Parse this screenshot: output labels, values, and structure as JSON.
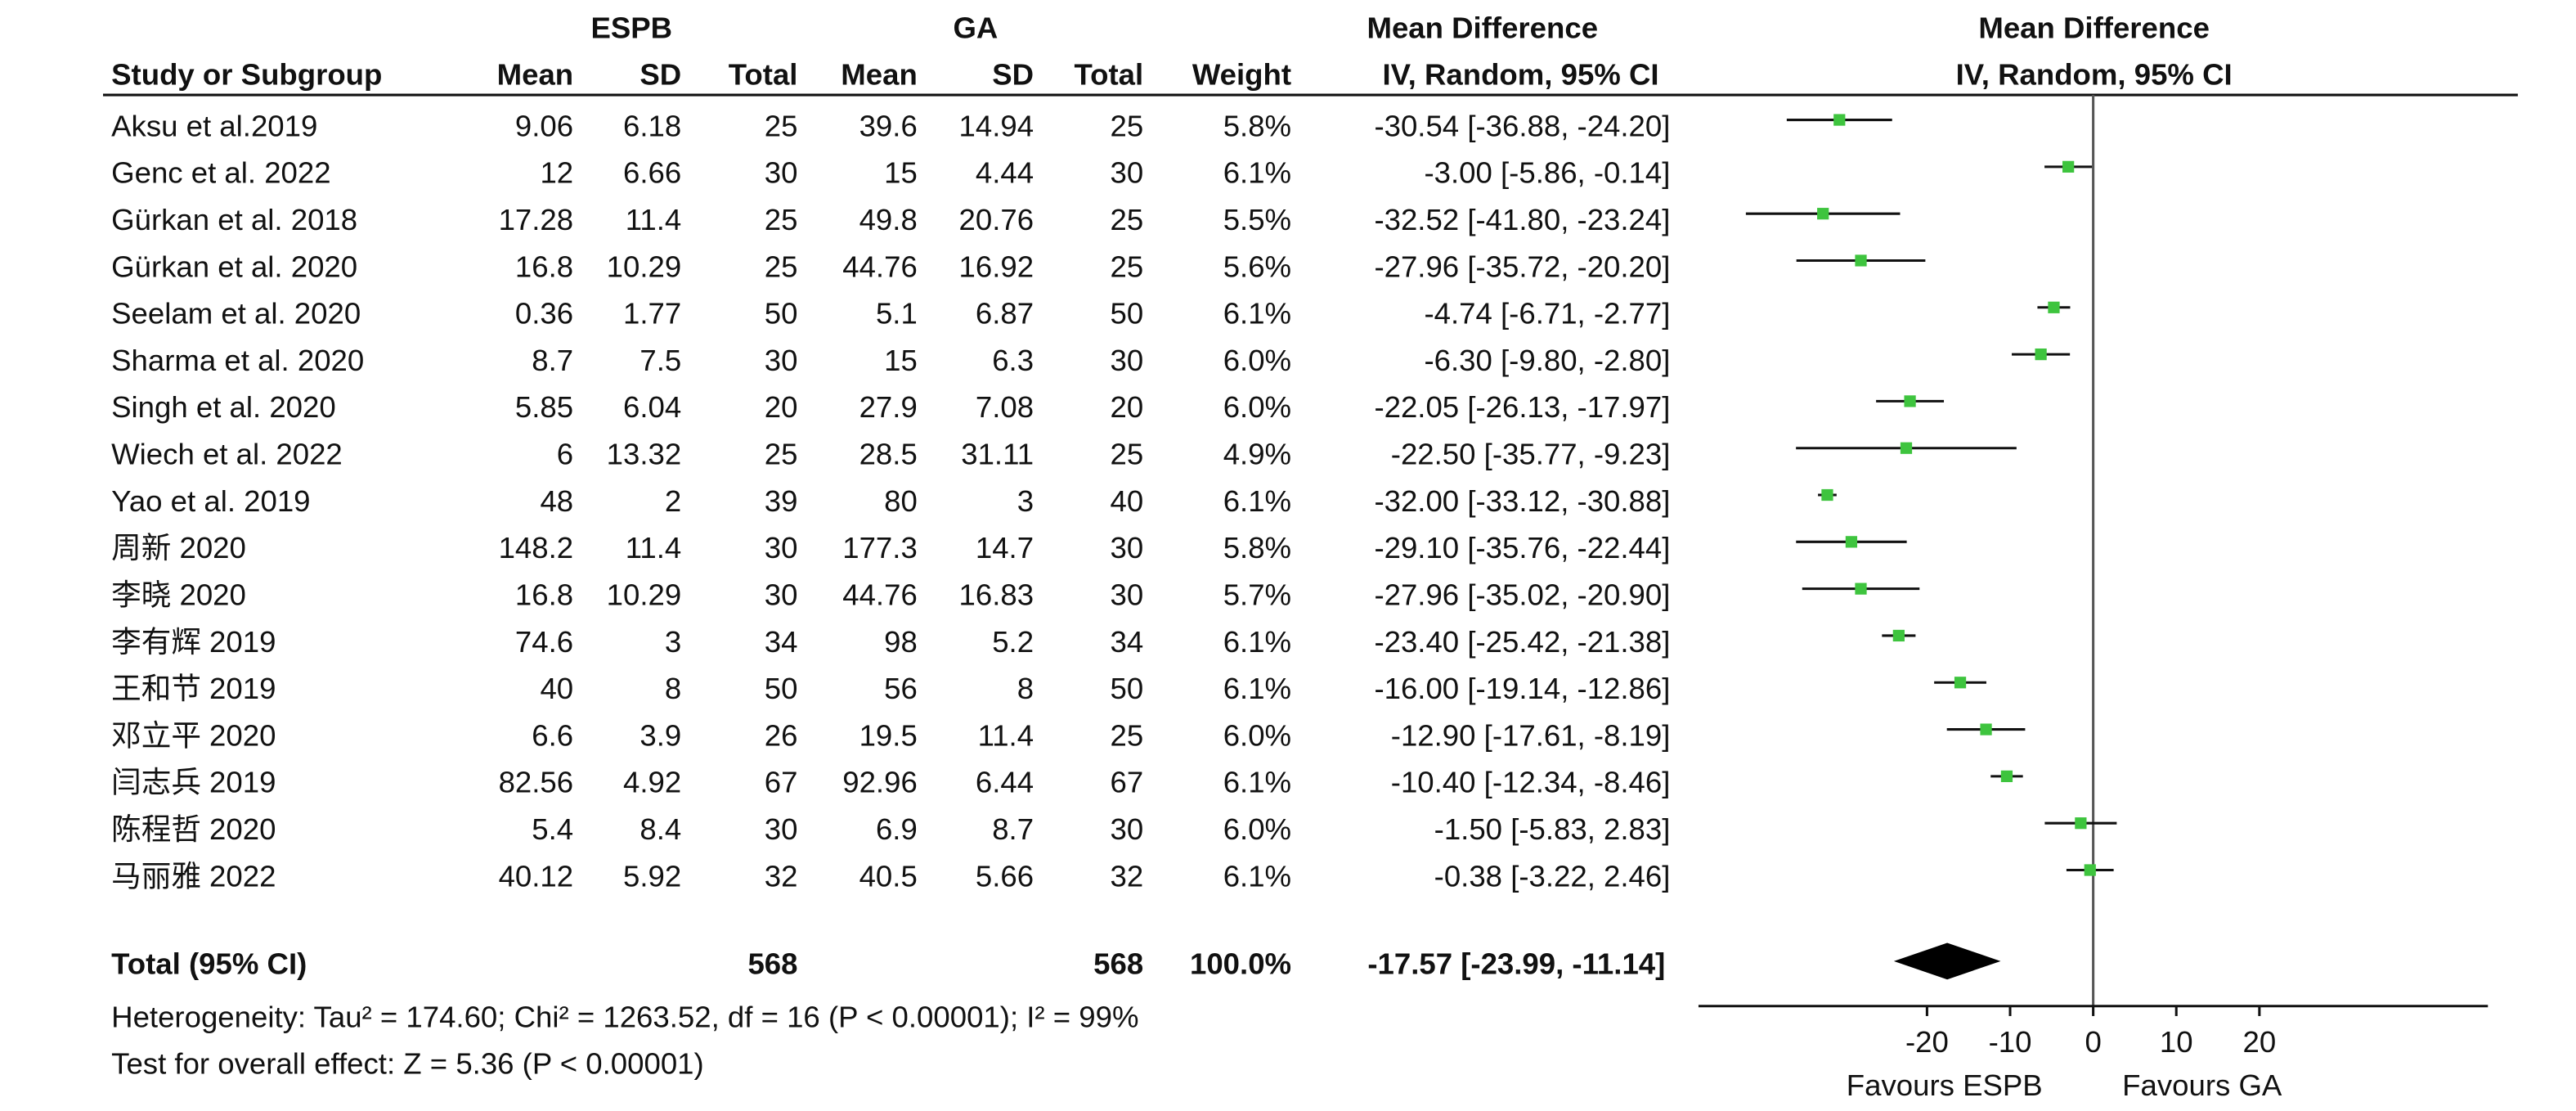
{
  "chart_data": {
    "type": "forest",
    "group_labels": {
      "espb": "ESPB",
      "ga": "GA",
      "md_table": "Mean Difference",
      "md_plot": "Mean Difference"
    },
    "headers": {
      "study": "Study or Subgroup",
      "espb_mean": "Mean",
      "espb_sd": "SD",
      "espb_total": "Total",
      "ga_mean": "Mean",
      "ga_sd": "SD",
      "ga_total": "Total",
      "weight": "Weight",
      "ci": "IV, Random, 95% CI",
      "plot": "IV, Random, 95% CI"
    },
    "studies": [
      "Aksu et al.2019",
      "Genc et al. 2022",
      "Gürkan et al. 2018",
      "Gürkan et al. 2020",
      "Seelam et al. 2020",
      "Sharma et al. 2020",
      "Singh et al. 2020",
      "Wiech et al. 2022",
      "Yao et al. 2019",
      "周新 2020",
      "李晓 2020",
      "李有辉 2019",
      "王和节 2019",
      "邓立平 2020",
      "闫志兵 2019",
      "陈程哲 2020",
      "马丽雅 2022"
    ],
    "espb_mean": [
      9.06,
      12,
      17.28,
      16.8,
      0.36,
      8.7,
      5.85,
      6,
      48,
      148.2,
      16.8,
      74.6,
      40,
      6.6,
      82.56,
      5.4,
      40.12
    ],
    "espb_sd": [
      6.18,
      6.66,
      11.4,
      10.29,
      1.77,
      7.5,
      6.04,
      13.32,
      2,
      11.4,
      10.29,
      3,
      8,
      3.9,
      4.92,
      8.4,
      5.92
    ],
    "espb_total": [
      25,
      30,
      25,
      25,
      50,
      30,
      20,
      25,
      39,
      30,
      30,
      34,
      50,
      26,
      67,
      30,
      32
    ],
    "ga_mean": [
      39.6,
      15,
      49.8,
      44.76,
      5.1,
      15,
      27.9,
      28.5,
      80,
      177.3,
      44.76,
      98,
      56,
      19.5,
      92.96,
      6.9,
      40.5
    ],
    "ga_sd": [
      14.94,
      4.44,
      20.76,
      16.92,
      6.87,
      6.3,
      7.08,
      31.11,
      3,
      14.7,
      16.83,
      5.2,
      8,
      11.4,
      6.44,
      8.7,
      5.66
    ],
    "ga_total": [
      25,
      30,
      25,
      25,
      50,
      30,
      20,
      25,
      40,
      30,
      30,
      34,
      50,
      25,
      67,
      30,
      32
    ],
    "weights": [
      "5.8%",
      "6.1%",
      "5.5%",
      "5.6%",
      "6.1%",
      "6.0%",
      "6.0%",
      "4.9%",
      "6.1%",
      "5.8%",
      "5.7%",
      "6.1%",
      "6.1%",
      "6.0%",
      "6.1%",
      "6.0%",
      "6.1%"
    ],
    "values": [
      -30.54,
      -3.0,
      -32.52,
      -27.96,
      -4.74,
      -6.3,
      -22.05,
      -22.5,
      -32.0,
      -29.1,
      -27.96,
      -23.4,
      -16.0,
      -12.9,
      -10.4,
      -1.5,
      -0.38
    ],
    "lower": [
      -36.88,
      -5.86,
      -41.8,
      -35.72,
      -6.71,
      -9.8,
      -26.13,
      -35.77,
      -33.12,
      -35.76,
      -35.02,
      -25.42,
      -19.14,
      -17.61,
      -12.34,
      -5.83,
      -3.22
    ],
    "upper": [
      -24.2,
      -0.14,
      -23.24,
      -20.2,
      -2.77,
      -2.8,
      -17.97,
      -9.23,
      -30.88,
      -22.44,
      -20.9,
      -21.38,
      -12.86,
      -8.19,
      -8.46,
      2.83,
      2.46
    ],
    "value_labels": [
      "-30.54 [-36.88, -24.20]",
      "-3.00 [-5.86, -0.14]",
      "-32.52 [-41.80, -23.24]",
      "-27.96 [-35.72, -20.20]",
      "-4.74 [-6.71, -2.77]",
      "-6.30 [-9.80, -2.80]",
      "-22.05 [-26.13, -17.97]",
      "-22.50 [-35.77, -9.23]",
      "-32.00 [-33.12, -30.88]",
      "-29.10 [-35.76, -22.44]",
      "-27.96 [-35.02, -20.90]",
      "-23.40 [-25.42, -21.38]",
      "-16.00 [-19.14, -12.86]",
      "-12.90 [-17.61, -8.19]",
      "-10.40 [-12.34, -8.46]",
      "-1.50 [-5.83, 2.83]",
      "-0.38 [-3.22, 2.46]"
    ],
    "color": "#3ec43e",
    "total": {
      "label": "Total (95% CI)",
      "espb_total": 568,
      "ga_total": 568,
      "weight": "100.0%",
      "value": -17.57,
      "lower": -23.99,
      "upper": -11.14,
      "value_label": "-17.57 [-23.99, -11.14]",
      "color": "#000000"
    },
    "heterogeneity": "Heterogeneity: Tau² = 174.60; Chi² = 1263.52, df = 16 (P < 0.00001); I² = 99%",
    "overall_effect": "Test for overall effect: Z = 5.36 (P < 0.00001)",
    "xlim": [
      -47.5,
      47.5
    ],
    "xticks": [
      -20,
      -10,
      0,
      10,
      20
    ],
    "x_left_label": "Favours ESPB",
    "x_right_label": "Favours GA"
  }
}
